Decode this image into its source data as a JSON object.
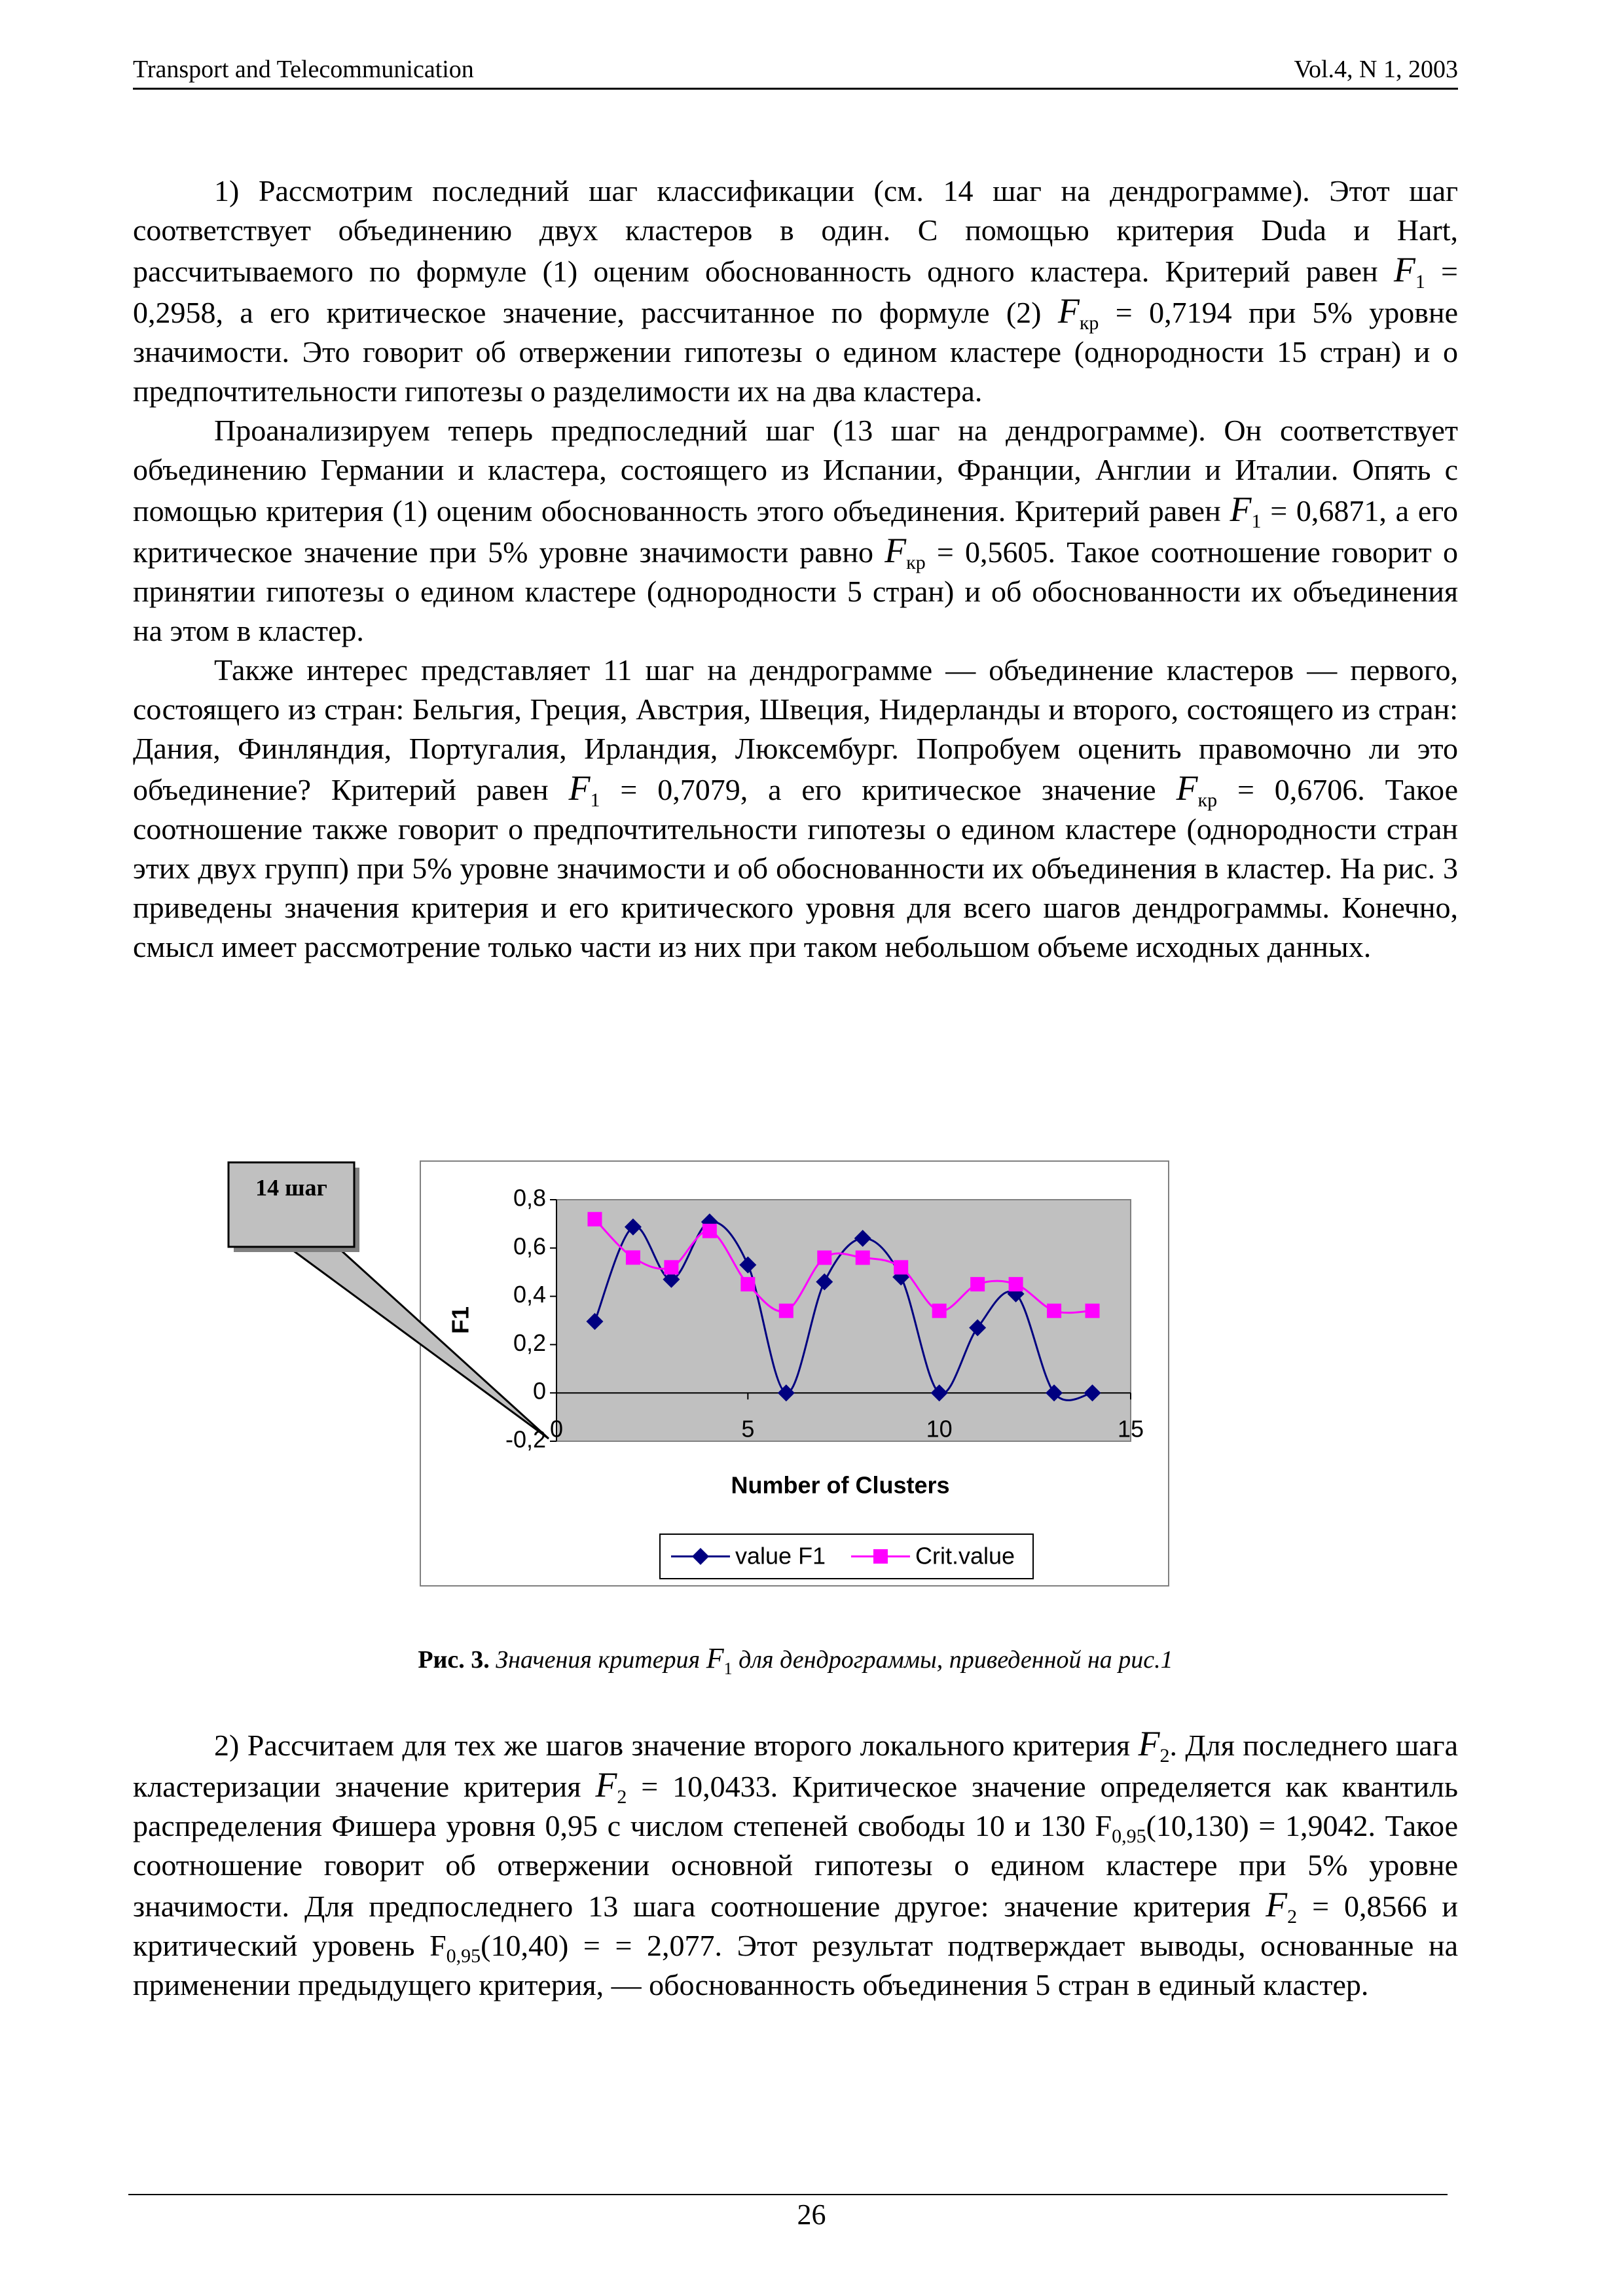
{
  "header": {
    "left": "Transport and Telecommunication",
    "right": "Vol.4, N 1, 2003"
  },
  "paragraphs": [
    [
      "1) Рассмотрим последний шаг классификации (см. 14 шаг на дендрограмме). Этот шаг соответствует объединению двух кластеров в один. С помощью критерия Duda и Hart, рассчитываемого по формуле (1) оценим обоснованность одного кластера. Критерий равен ",
      {
        "var": "F",
        "sub": "1"
      },
      " = 0,2958, а его критическое значение, рассчитанное по формуле (2) ",
      {
        "var": "F",
        "sub": "кр"
      },
      " = 0,7194 при 5% уровне значимости. Это говорит об отвержении гипотезы о едином кластере (однородности 15 стран) и о предпочтительности гипотезы о разделимости их на два кластера."
    ],
    [
      "Проанализируем теперь предпоследний шаг (13 шаг на дендрограмме). Он соответствует объединению Германии и кластера, состоящего из Испании, Франции, Англии и Италии. Опять с помощью критерия (1) оценим обоснованность этого объединения. Критерий равен ",
      {
        "var": "F",
        "sub": "1"
      },
      " = 0,6871, а его критическое значение при 5% уровне значимости равно ",
      {
        "var": "F",
        "sub": "кр"
      },
      " = 0,5605. Такое соотношение говорит о принятии гипотезы о едином кластере (однородности 5 стран) и об обоснованности их объединения на этом в кластер."
    ],
    [
      "Также интерес представляет 11 шаг на дендрограмме — объединение кластеров — первого, состоящего из стран: Бельгия, Греция, Австрия, Швеция, Нидерланды и второго, состоящего из стран: Дания, Финляндия, Португалия, Ирландия, Люксембург. Попробуем оценить правомочно ли это объединение? Критерий равен ",
      {
        "var": "F",
        "sub": "1"
      },
      " = 0,7079, а его критическое значение ",
      {
        "var": "F",
        "sub": "кр"
      },
      " = 0,6706. Такое соотношение также говорит о предпочтительности гипотезы о едином кластере (однородности стран этих двух групп) при 5% уровне значимости и об обоснованности их объединения в кластер. На рис. 3 приведены значения критерия и его критического уровня для всего шагов дендрограммы. Конечно, смысл имеет рассмотрение только части из них при таком небольшом объеме исходных данных."
    ]
  ],
  "chart_data": {
    "type": "line",
    "x": [
      1,
      2,
      3,
      4,
      5,
      6,
      7,
      8,
      9,
      10,
      11,
      12,
      13,
      14
    ],
    "series": [
      {
        "name": "value F1",
        "color": "#000080",
        "marker": "diamond",
        "values": [
          0.2958,
          0.6871,
          0.47,
          0.7079,
          0.53,
          0,
          0.46,
          0.64,
          0.48,
          0,
          0.27,
          0.41,
          0,
          0
        ]
      },
      {
        "name": "Crit.value",
        "color": "#ff00ff",
        "marker": "square",
        "values": [
          0.7194,
          0.5605,
          0.52,
          0.6706,
          0.45,
          0.34,
          0.56,
          0.56,
          0.52,
          0.34,
          0.45,
          0.45,
          0.34,
          0.34
        ]
      }
    ],
    "smooth": true,
    "xlim": [
      0,
      15
    ],
    "ylim": [
      -0.2,
      0.8
    ],
    "xticks": [
      0,
      5,
      10,
      15
    ],
    "yticks": [
      {
        "value": -0.2,
        "label": "-0,2"
      },
      0,
      {
        "value": 0.2,
        "label": "0,2"
      },
      {
        "value": 0.4,
        "label": "0,4"
      },
      {
        "value": 0.6,
        "label": "0,6"
      },
      {
        "value": 0.8,
        "label": "0,8"
      }
    ],
    "xlabel": "Number of Clusters",
    "ylabel": "F1",
    "annotation": "14 шаг",
    "plot_background": "#c0c0c0",
    "legend": "bottom"
  },
  "caption": {
    "label": "Рис. 3.",
    "text": [
      "Значения критерия ",
      {
        "var": "F",
        "sub": "1"
      },
      " для дендрограммы, приведенной на рис.1"
    ]
  },
  "paragraphs_after": [
    [
      "2) Рассчитаем для тех же шагов значение второго локального критерия ",
      {
        "var": "F",
        "sub": "2"
      },
      ". Для последнего шага кластеризации значение критерия ",
      {
        "var": "F",
        "sub": "2"
      },
      " = 10,0433. Критическое значение определяется как квантиль распределения Фишера уровня 0,95 с числом степеней свободы 10 и 130 ",
      {
        "var": "F",
        "sub": "0,95",
        "upright": true
      },
      "(10,130) = 1,9042. Такое соотношение говорит об отвержении основной гипотезы о едином кластере при 5% уровне значимости. Для предпоследнего 13 шага соотношение другое: значение критерия ",
      {
        "var": "F",
        "sub": "2"
      },
      " = 0,8566 и критический уровень ",
      {
        "var": "F",
        "sub": "0,95",
        "upright": true
      },
      "(10,40) = = 2,077. Этот результат подтверждает выводы, основанные на применении предыдущего критерия, — обоснованность объединения 5 стран в единый кластер."
    ]
  ],
  "footer": {
    "page": "26"
  }
}
